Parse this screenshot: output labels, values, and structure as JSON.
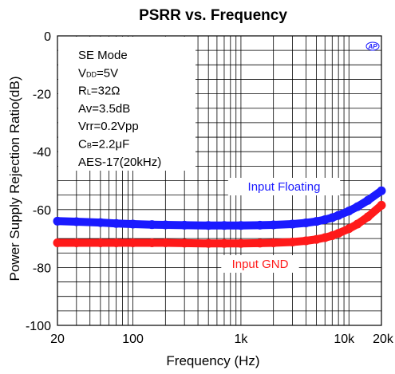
{
  "chart_data": {
    "type": "line",
    "title": "PSRR vs. Frequency",
    "xlabel": "Frequency (Hz)",
    "ylabel": "Power Supply Rejection Ratio(dB)",
    "x_scale": "log",
    "xlim": [
      20,
      20000
    ],
    "ylim": [
      -100,
      0
    ],
    "grid": true,
    "x_ticks": [
      {
        "value": 20,
        "label": "20"
      },
      {
        "value": 100,
        "label": "100"
      },
      {
        "value": 1000,
        "label": "1k"
      },
      {
        "value": 10000,
        "label": "10k"
      },
      {
        "value": 20000,
        "label": "20k"
      }
    ],
    "y_ticks": [
      {
        "value": 0,
        "label": "0"
      },
      {
        "value": -20,
        "label": "-20"
      },
      {
        "value": -40,
        "label": "-40"
      },
      {
        "value": -60,
        "label": "-60"
      },
      {
        "value": -80,
        "label": "-80"
      },
      {
        "value": -100,
        "label": "-100"
      }
    ],
    "series": [
      {
        "name": "Input Floating",
        "color": "#1a1aff",
        "x": [
          20,
          30,
          50,
          70,
          100,
          150,
          200,
          300,
          500,
          700,
          1000,
          1500,
          2000,
          3000,
          4000,
          5000,
          6000,
          7000,
          8000,
          10000,
          12000,
          15000,
          20000
        ],
        "y": [
          -64,
          -64.2,
          -64.5,
          -64.8,
          -65,
          -65.2,
          -65.3,
          -65.4,
          -65.5,
          -65.5,
          -65.5,
          -65.4,
          -65.3,
          -65,
          -64.6,
          -64.1,
          -63.5,
          -62.8,
          -62,
          -60.5,
          -59,
          -56.8,
          -53.5
        ]
      },
      {
        "name": "Input GND",
        "color": "#ff1a1a",
        "x": [
          20,
          30,
          50,
          70,
          100,
          150,
          200,
          300,
          500,
          700,
          1000,
          1500,
          2000,
          3000,
          4000,
          5000,
          6000,
          7000,
          8000,
          10000,
          12000,
          15000,
          20000
        ],
        "y": [
          -71.5,
          -71.5,
          -71.5,
          -71.5,
          -71.5,
          -71.5,
          -71.5,
          -71.6,
          -71.7,
          -71.7,
          -71.7,
          -71.6,
          -71.5,
          -71.2,
          -70.8,
          -70.3,
          -69.7,
          -69,
          -68.2,
          -66.6,
          -65,
          -62.5,
          -58.5
        ]
      }
    ],
    "legend_labels": [
      {
        "series": "Input Floating",
        "text": "Input Floating",
        "color": "#1a1aff"
      },
      {
        "series": "Input GND",
        "text": "Input GND",
        "color": "#ff1a1a"
      }
    ],
    "conditions": [
      {
        "main": "SE Mode",
        "sub": "",
        "rest": ""
      },
      {
        "main": "V",
        "sub": "DD",
        "rest": "=5V"
      },
      {
        "main": "R",
        "sub": "L",
        "rest": "=32Ω"
      },
      {
        "main": "Av=3.5dB",
        "sub": "",
        "rest": ""
      },
      {
        "main": "Vrr=0.2Vpp",
        "sub": "",
        "rest": ""
      },
      {
        "main": "C",
        "sub": "B",
        "rest": "=2.2μF"
      },
      {
        "main": "AES-17(20kHz)",
        "sub": "",
        "rest": ""
      }
    ],
    "logo": "AP"
  }
}
